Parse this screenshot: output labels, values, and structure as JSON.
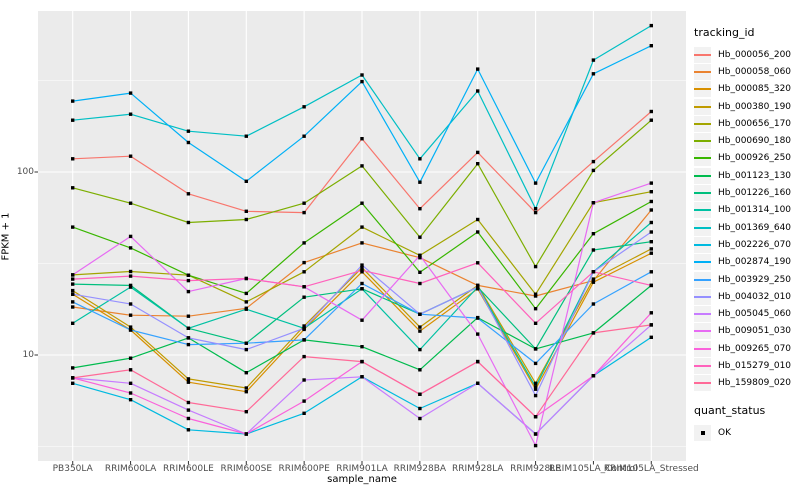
{
  "chart_data": {
    "type": "line",
    "title": "",
    "xlabel": "sample_name",
    "ylabel": "FPKM + 1",
    "y_scale": "log10",
    "ylim": [
      2.6,
      760
    ],
    "grid": true,
    "panel_background": "#EBEBEB",
    "gridline_color": "#FFFFFF",
    "tick_color": "#333333",
    "tick_label_color": "#4D4D4D",
    "point_shape": "square",
    "point_color": "#000000",
    "y_major_ticks": [
      {
        "label": "10",
        "value": 10
      },
      {
        "label": "100",
        "value": 100
      }
    ],
    "y_minor_gridlines": [
      3.162,
      31.62,
      316.2
    ],
    "categories": [
      "PB350LA",
      "RRIM600LA",
      "RRIM600LE",
      "RRIM600SE",
      "RRIM600PE",
      "RRIM901LA",
      "RRIM928BA",
      "RRIM928LA",
      "RRIM928LE",
      "RRIM105LA_Control",
      "RRIM105LA_Stressed"
    ],
    "series": [
      {
        "name": "Hb_000056_200",
        "color": "#F8766D",
        "values": [
          118,
          122,
          76,
          61,
          60,
          152,
          63,
          128,
          60,
          114,
          214
        ]
      },
      {
        "name": "Hb_000058_060",
        "color": "#EA8331",
        "values": [
          18.3,
          16.5,
          16.3,
          18,
          32,
          41,
          34,
          24,
          21,
          25.5,
          62
        ]
      },
      {
        "name": "Hb_000085_320",
        "color": "#D89000",
        "values": [
          21.5,
          13.7,
          7.1,
          6.3,
          13.8,
          28.5,
          13.5,
          23,
          6.5,
          25,
          36
        ]
      },
      {
        "name": "Hb_000380_190",
        "color": "#C09B00",
        "values": [
          22.5,
          14.2,
          7.4,
          6.6,
          14.4,
          30,
          14.2,
          24,
          7.0,
          26,
          38
        ]
      },
      {
        "name": "Hb_000656_170",
        "color": "#A3A500",
        "values": [
          27.4,
          28.6,
          27.3,
          19.5,
          28.5,
          50,
          35,
          55,
          21.5,
          68,
          78
        ]
      },
      {
        "name": "Hb_000690_180",
        "color": "#7CAE00",
        "values": [
          82,
          67.5,
          53,
          55,
          67.5,
          108,
          44,
          111,
          30.4,
          102,
          192
        ]
      },
      {
        "name": "Hb_000926_250",
        "color": "#39B600",
        "values": [
          50,
          38.5,
          27.3,
          21.7,
          41,
          67.5,
          28.3,
          47,
          17.9,
          46,
          69
        ]
      },
      {
        "name": "Hb_001123_130",
        "color": "#00BB4E",
        "values": [
          8.5,
          9.6,
          12.4,
          8.0,
          12.1,
          11.1,
          8.3,
          16,
          10.8,
          13.2,
          24
        ]
      },
      {
        "name": "Hb_001226_160",
        "color": "#00BF7D",
        "values": [
          24.4,
          24,
          14.0,
          11.6,
          20.7,
          23,
          16.7,
          23.5,
          10.8,
          37.5,
          41.6
        ]
      },
      {
        "name": "Hb_001314_100",
        "color": "#00C1A3",
        "values": [
          14.9,
          23.5,
          14,
          17.8,
          14,
          23,
          10.7,
          23.5,
          6.7,
          28.5,
          53
        ]
      },
      {
        "name": "Hb_001369_640",
        "color": "#00BFC4",
        "values": [
          192,
          207,
          167,
          157,
          227,
          339,
          118,
          277,
          63,
          409,
          631
        ]
      },
      {
        "name": "Hb_002226_070",
        "color": "#00BAE0",
        "values": [
          7.0,
          5.7,
          3.9,
          3.7,
          4.8,
          7.6,
          5.1,
          7.0,
          3.7,
          7.7,
          12.5
        ]
      },
      {
        "name": "Hb_002874_190",
        "color": "#00B0F6",
        "values": [
          244,
          270,
          145,
          89,
          157,
          312,
          88,
          365,
          87,
          344,
          490
        ]
      },
      {
        "name": "Hb_003929_250",
        "color": "#35A2FF",
        "values": [
          19.5,
          13.7,
          11.4,
          11.6,
          12.1,
          24.6,
          16.7,
          15.9,
          9.0,
          19.0,
          28.5
        ]
      },
      {
        "name": "Hb_004032_010",
        "color": "#9590FF",
        "values": [
          21.5,
          19.0,
          12.4,
          10.7,
          14,
          31,
          16.7,
          23.5,
          6.0,
          28.5,
          47
        ]
      },
      {
        "name": "Hb_005045_060",
        "color": "#C77CFF",
        "values": [
          7.5,
          7.0,
          5.0,
          3.7,
          7.3,
          7.6,
          4.5,
          7.0,
          3.7,
          7.7,
          14.6
        ]
      },
      {
        "name": "Hb_009051_030",
        "color": "#E76BF3",
        "values": [
          27.4,
          44.5,
          22.2,
          26.2,
          23.6,
          15.5,
          35,
          13.0,
          3.2,
          68,
          87
        ]
      },
      {
        "name": "Hb_009265_070",
        "color": "#FA62DB",
        "values": [
          7.5,
          6.2,
          4.5,
          3.7,
          5.6,
          9.2,
          6.1,
          9.2,
          4.6,
          7.7,
          17
        ]
      },
      {
        "name": "Hb_015279_010",
        "color": "#FF62BC",
        "values": [
          26,
          27,
          25.5,
          26.2,
          23.6,
          29,
          24.6,
          31.9,
          14.9,
          28.5,
          24
        ]
      },
      {
        "name": "Hb_159809_020",
        "color": "#FF6A98",
        "values": [
          7.5,
          8.3,
          5.5,
          4.9,
          9.8,
          9.2,
          6.1,
          9.2,
          4.6,
          13.2,
          14.6
        ]
      }
    ],
    "legend": {
      "position": "right",
      "tracking_title": "tracking_id",
      "quant_title": "quant_status",
      "quant_entries": [
        {
          "label": "OK",
          "marker": "black-square"
        }
      ]
    }
  }
}
